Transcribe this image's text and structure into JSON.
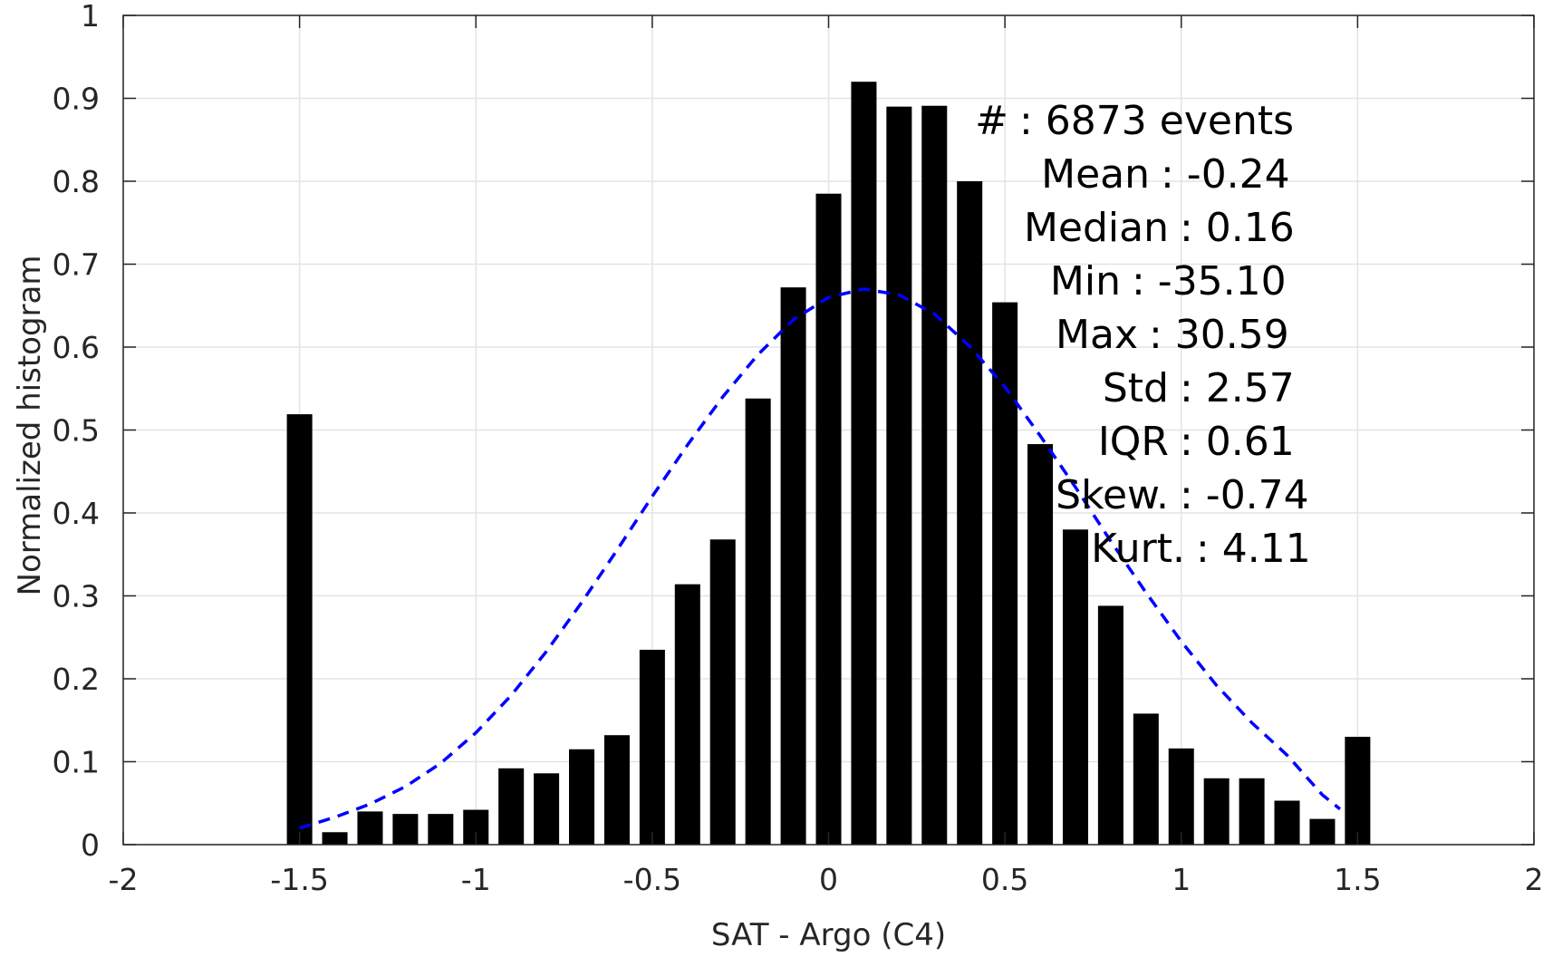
{
  "chart_data": {
    "type": "bar",
    "xlabel": "SAT - Argo (C4)",
    "ylabel": "Normalized histogram",
    "xlim": [
      -2,
      2
    ],
    "ylim": [
      0,
      1
    ],
    "xticks": [
      "-2",
      "-1.5",
      "-1",
      "-0.5",
      "0",
      "0.5",
      "1",
      "1.5",
      "2"
    ],
    "yticks": [
      "0",
      "0.1",
      "0.2",
      "0.3",
      "0.4",
      "0.5",
      "0.6",
      "0.7",
      "0.8",
      "0.9",
      "1"
    ],
    "grid": true,
    "bar_color": "#000000",
    "bins": {
      "centers": [
        -1.5,
        -1.4,
        -1.3,
        -1.2,
        -1.1,
        -1.0,
        -0.9,
        -0.8,
        -0.7,
        -0.6,
        -0.5,
        -0.4,
        -0.3,
        -0.2,
        -0.1,
        0.0,
        0.1,
        0.2,
        0.3,
        0.4,
        0.5,
        0.6,
        0.7,
        0.8,
        0.9,
        1.0,
        1.1,
        1.2,
        1.3,
        1.4,
        1.5
      ],
      "values": [
        0.519,
        0.015,
        0.04,
        0.037,
        0.037,
        0.042,
        0.092,
        0.086,
        0.115,
        0.132,
        0.235,
        0.314,
        0.368,
        0.538,
        0.672,
        0.785,
        0.92,
        0.89,
        0.891,
        0.8,
        0.654,
        0.483,
        0.38,
        0.288,
        0.158,
        0.116,
        0.08,
        0.08,
        0.053,
        0.031,
        0.13
      ]
    },
    "fit_curve": {
      "style": "dashed",
      "color": "#0000ff",
      "x": [
        -1.5,
        -1.4,
        -1.3,
        -1.2,
        -1.1,
        -1.0,
        -0.9,
        -0.8,
        -0.7,
        -0.6,
        -0.5,
        -0.4,
        -0.3,
        -0.2,
        -0.1,
        0.0,
        0.1,
        0.2,
        0.3,
        0.4,
        0.5,
        0.6,
        0.7,
        0.8,
        0.9,
        1.0,
        1.1,
        1.2,
        1.3,
        1.4,
        1.45
      ],
      "y": [
        0.02,
        0.033,
        0.049,
        0.07,
        0.098,
        0.135,
        0.18,
        0.233,
        0.292,
        0.355,
        0.42,
        0.482,
        0.54,
        0.591,
        0.633,
        0.66,
        0.67,
        0.663,
        0.64,
        0.601,
        0.552,
        0.493,
        0.431,
        0.366,
        0.304,
        0.245,
        0.192,
        0.147,
        0.108,
        0.06,
        0.043
      ]
    },
    "stats": [
      {
        "label": "#",
        "value": ": 6873 events"
      },
      {
        "label": "Mean",
        "value": ": -0.24"
      },
      {
        "label": "Median",
        "value": ": 0.16"
      },
      {
        "label": "Min",
        "value": ": -35.10"
      },
      {
        "label": "Max",
        "value": ": 30.59"
      },
      {
        "label": "Std",
        "value": ": 2.57"
      },
      {
        "label": "IQR",
        "value": ": 0.61"
      },
      {
        "label": "Skew.",
        "value": ": -0.74"
      },
      {
        "label": "Kurt.",
        "value": ": 4.11"
      }
    ]
  }
}
